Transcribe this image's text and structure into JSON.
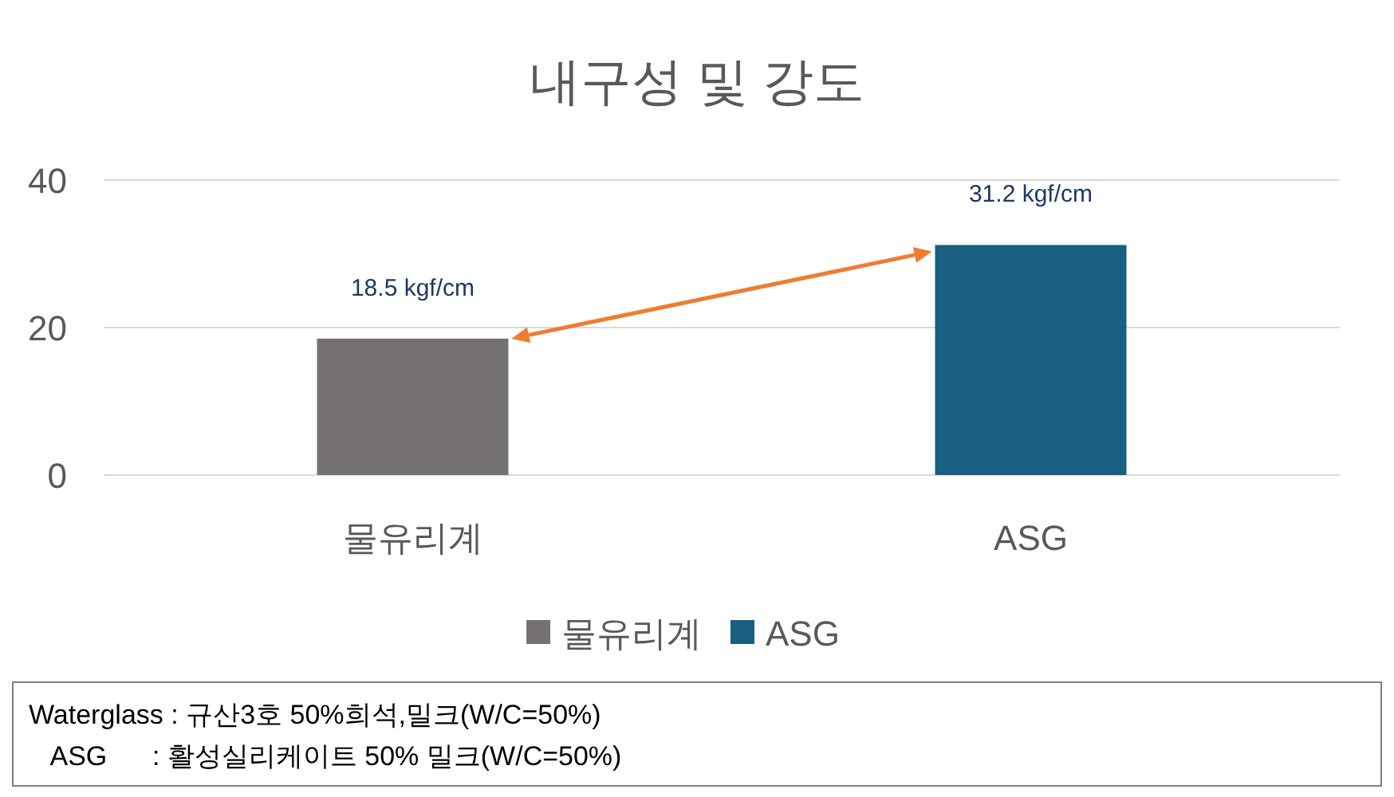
{
  "chart_data": {
    "type": "bar",
    "title": "내구성 및 강도",
    "categories": [
      "물유리계",
      "ASG"
    ],
    "series": [
      {
        "name": "물유리계",
        "color": "#767171",
        "values": [
          18.5,
          null
        ],
        "value_labels": [
          "18.5 kgf/cm",
          null
        ]
      },
      {
        "name": "ASG",
        "color": "#185f81",
        "values": [
          null,
          31.2
        ],
        "value_labels": [
          null,
          "31.2 kgf/cm"
        ]
      }
    ],
    "ylim": [
      0,
      40
    ],
    "yticks": [
      0,
      20,
      40
    ],
    "grid": "y",
    "legend": "bottom",
    "annotations": [
      "Waterglass : 규산3호 50%희석,밀크(W/C=50%)",
      "   ASG      : 활성실리케이트 50% 밀크(W/C=50%)"
    ]
  }
}
